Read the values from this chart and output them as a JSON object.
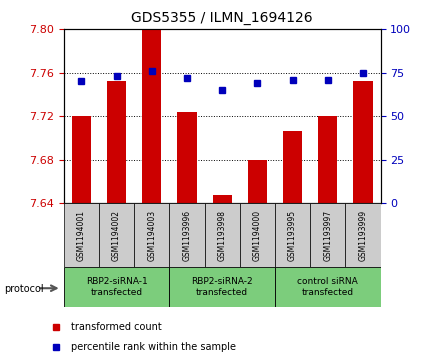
{
  "title": "GDS5355 / ILMN_1694126",
  "samples": [
    "GSM1194001",
    "GSM1194002",
    "GSM1194003",
    "GSM1193996",
    "GSM1193998",
    "GSM1194000",
    "GSM1193995",
    "GSM1193997",
    "GSM1193999"
  ],
  "red_values": [
    7.72,
    7.752,
    7.8,
    7.724,
    7.648,
    7.68,
    7.706,
    7.72,
    7.752
  ],
  "blue_values": [
    70,
    73,
    76,
    72,
    65,
    69,
    71,
    71,
    75
  ],
  "ylim_left": [
    7.64,
    7.8
  ],
  "ylim_right": [
    0,
    100
  ],
  "yticks_left": [
    7.64,
    7.68,
    7.72,
    7.76,
    7.8
  ],
  "yticks_right": [
    0,
    25,
    50,
    75,
    100
  ],
  "groups": [
    {
      "label": "RBP2-siRNA-1\ntransfected",
      "start": 0,
      "end": 3,
      "color": "#7CCD7C"
    },
    {
      "label": "RBP2-siRNA-2\ntransfected",
      "start": 3,
      "end": 6,
      "color": "#7CCD7C"
    },
    {
      "label": "control siRNA\ntransfected",
      "start": 6,
      "end": 9,
      "color": "#7CCD7C"
    }
  ],
  "bar_color": "#CC0000",
  "dot_color": "#0000BB",
  "bar_width": 0.55,
  "grid_color": "#000000",
  "left_axis_color": "#CC0000",
  "right_axis_color": "#0000BB",
  "protocol_label": "protocol",
  "sample_box_color": "#CCCCCC",
  "legend_red_label": "transformed count",
  "legend_blue_label": "percentile rank within the sample"
}
